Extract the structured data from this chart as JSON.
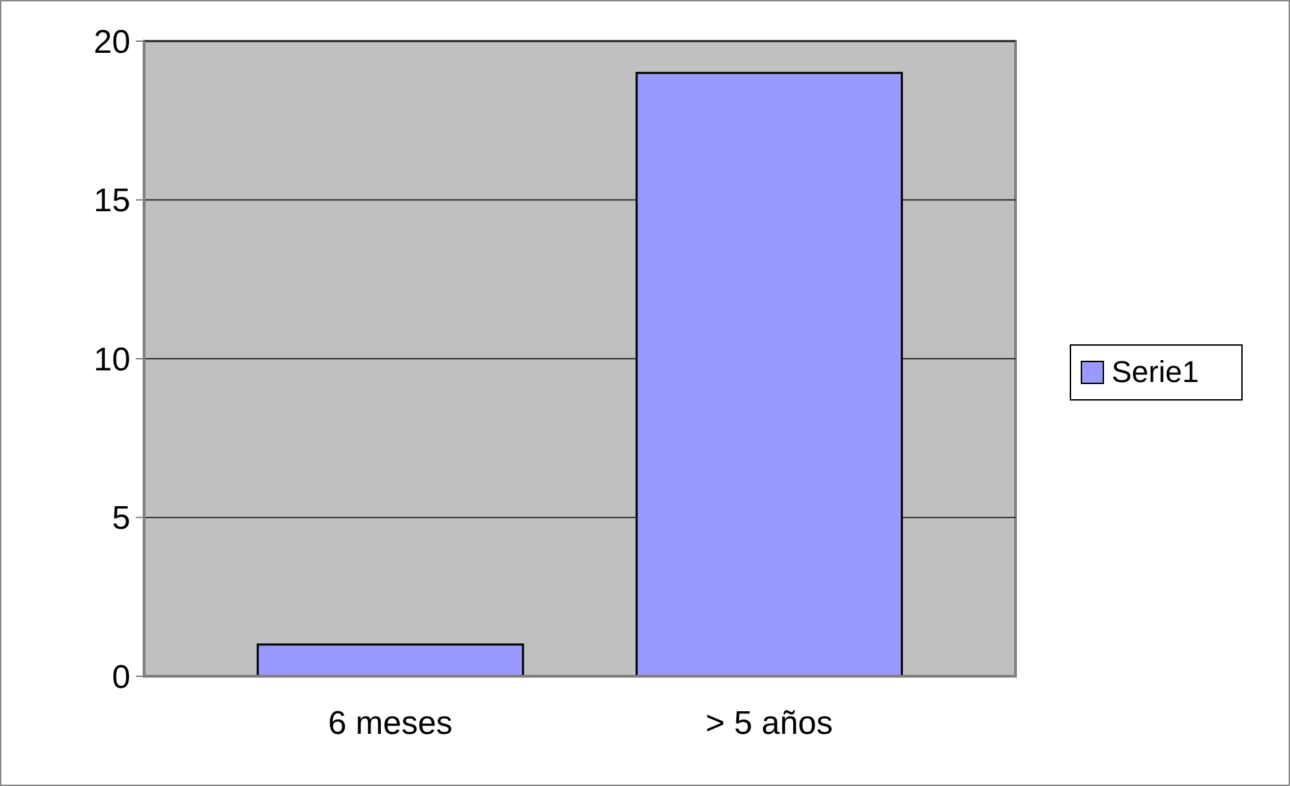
{
  "chart_data": {
    "type": "bar",
    "categories": [
      "6 meses",
      "> 5 años"
    ],
    "series": [
      {
        "name": "Serie1",
        "color": "#9999ff",
        "values": [
          1,
          19
        ]
      }
    ],
    "ylim": [
      0,
      20
    ],
    "yticks": [
      0,
      5,
      10,
      15,
      20
    ],
    "grid": "y",
    "legend": "right"
  }
}
